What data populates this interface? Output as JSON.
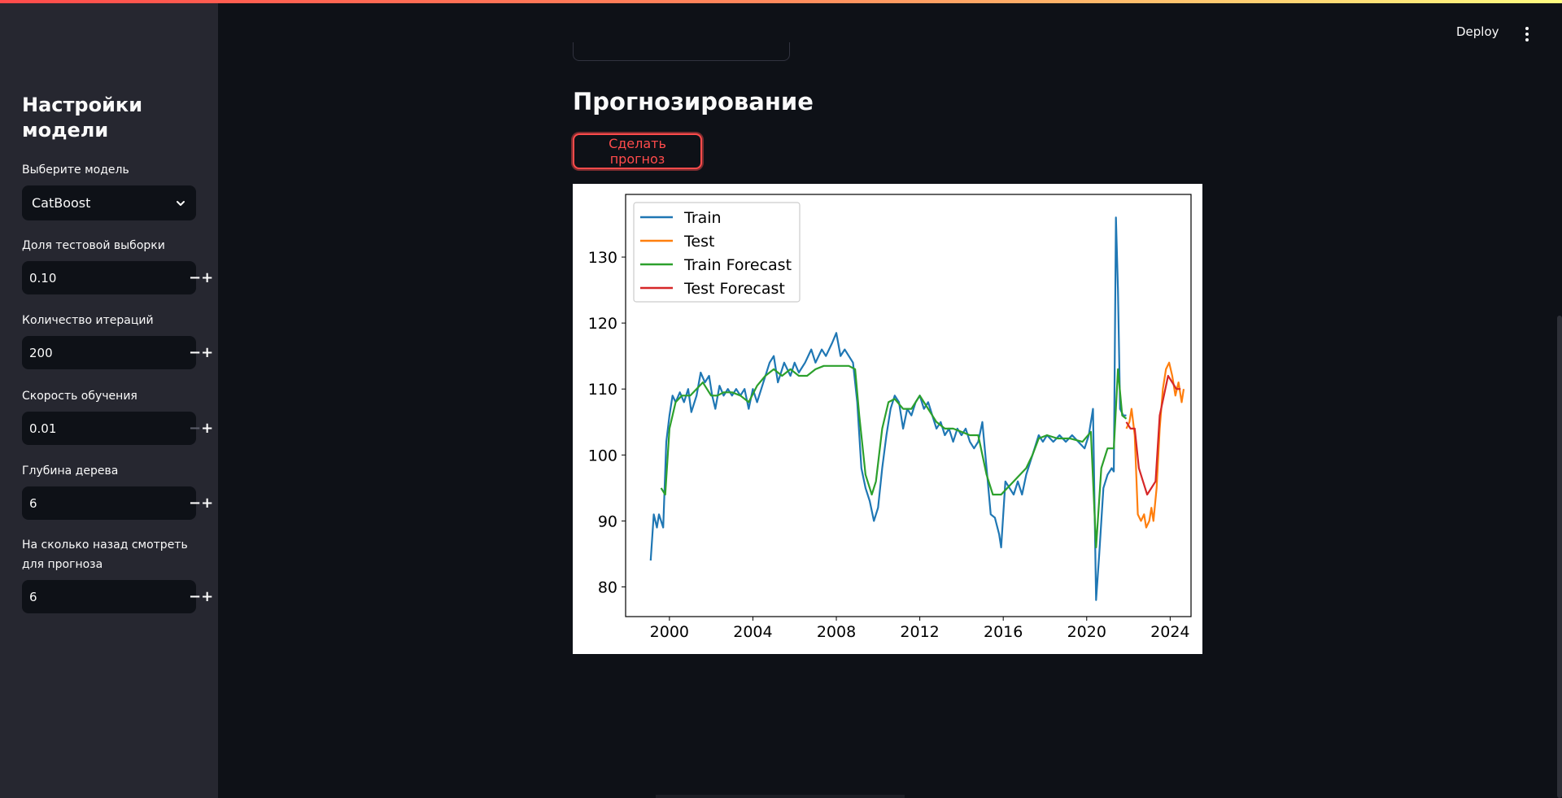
{
  "header": {
    "deploy_label": "Deploy",
    "menu_icon": "vertical-dots-icon"
  },
  "sidebar": {
    "title": "Настройки модели",
    "model_select": {
      "label": "Выберите модель",
      "value": "CatBoost",
      "icon": "chevron-down-icon"
    },
    "fields": [
      {
        "label": "Доля тестовой выборки",
        "value": "0.10",
        "minus_disabled": false
      },
      {
        "label": "Количество итераций",
        "value": "200",
        "minus_disabled": false
      },
      {
        "label": "Скорость обучения",
        "value": "0.01",
        "minus_disabled": true
      },
      {
        "label": "Глубина дерева",
        "value": "6",
        "minus_disabled": false
      },
      {
        "label": "На сколько назад смотреть для прогноза",
        "value": "6",
        "minus_disabled": false
      }
    ],
    "minus_symbol": "−",
    "plus_symbol": "+"
  },
  "main": {
    "section_title": "Прогнозирование",
    "forecast_button_label": "Сделать прогноз"
  },
  "colors": {
    "accent": "#ff4b4b",
    "train": "#1f77b4",
    "test": "#ff7f0e",
    "train_forecast": "#2ca02c",
    "test_forecast": "#d62728"
  },
  "chart_data": {
    "type": "line",
    "title": "",
    "xlabel": "",
    "ylabel": "",
    "xlim": [
      1997.9,
      2025.0
    ],
    "ylim": [
      75.5,
      139.5
    ],
    "xticks": [
      2000,
      2004,
      2008,
      2012,
      2016,
      2020,
      2024
    ],
    "yticks": [
      80,
      90,
      100,
      110,
      120,
      130
    ],
    "legend_position": "top-left",
    "grid": false,
    "series": [
      {
        "name": "Train",
        "color": "#1f77b4",
        "points": [
          [
            1999.1,
            84
          ],
          [
            1999.25,
            91
          ],
          [
            1999.4,
            89
          ],
          [
            1999.5,
            91
          ],
          [
            1999.7,
            89
          ],
          [
            1999.85,
            102
          ],
          [
            2000.0,
            106
          ],
          [
            2000.15,
            109
          ],
          [
            2000.3,
            108
          ],
          [
            2000.5,
            109.5
          ],
          [
            2000.7,
            108
          ],
          [
            2000.9,
            110
          ],
          [
            2001.05,
            106.5
          ],
          [
            2001.3,
            109
          ],
          [
            2001.5,
            112.5
          ],
          [
            2001.7,
            111
          ],
          [
            2001.9,
            112
          ],
          [
            2002.05,
            109
          ],
          [
            2002.2,
            107
          ],
          [
            2002.4,
            110.5
          ],
          [
            2002.6,
            109
          ],
          [
            2002.8,
            110
          ],
          [
            2003.0,
            109
          ],
          [
            2003.2,
            110
          ],
          [
            2003.4,
            109
          ],
          [
            2003.6,
            110
          ],
          [
            2003.8,
            107
          ],
          [
            2004.0,
            110
          ],
          [
            2004.2,
            108
          ],
          [
            2004.5,
            111
          ],
          [
            2004.8,
            114
          ],
          [
            2005.0,
            115
          ],
          [
            2005.2,
            111
          ],
          [
            2005.5,
            114
          ],
          [
            2005.8,
            112
          ],
          [
            2006.0,
            114
          ],
          [
            2006.2,
            112.5
          ],
          [
            2006.5,
            114
          ],
          [
            2006.8,
            116
          ],
          [
            2007.0,
            114
          ],
          [
            2007.3,
            116
          ],
          [
            2007.5,
            115
          ],
          [
            2007.8,
            117
          ],
          [
            2008.0,
            118.5
          ],
          [
            2008.2,
            115
          ],
          [
            2008.4,
            116
          ],
          [
            2008.6,
            115
          ],
          [
            2008.8,
            114
          ],
          [
            2009.0,
            108
          ],
          [
            2009.2,
            98
          ],
          [
            2009.4,
            95
          ],
          [
            2009.6,
            93
          ],
          [
            2009.8,
            90
          ],
          [
            2010.0,
            92
          ],
          [
            2010.2,
            98
          ],
          [
            2010.4,
            103
          ],
          [
            2010.6,
            107
          ],
          [
            2010.8,
            109
          ],
          [
            2011.0,
            108
          ],
          [
            2011.2,
            104
          ],
          [
            2011.4,
            107
          ],
          [
            2011.6,
            106
          ],
          [
            2011.8,
            108
          ],
          [
            2012.0,
            109
          ],
          [
            2012.2,
            107
          ],
          [
            2012.4,
            108
          ],
          [
            2012.6,
            106
          ],
          [
            2012.8,
            104
          ],
          [
            2013.0,
            105
          ],
          [
            2013.2,
            103
          ],
          [
            2013.4,
            104
          ],
          [
            2013.6,
            102
          ],
          [
            2013.8,
            104
          ],
          [
            2014.0,
            103
          ],
          [
            2014.2,
            104
          ],
          [
            2014.4,
            102
          ],
          [
            2014.6,
            101
          ],
          [
            2014.8,
            102
          ],
          [
            2015.0,
            105
          ],
          [
            2015.2,
            98
          ],
          [
            2015.4,
            91
          ],
          [
            2015.6,
            90.5
          ],
          [
            2015.8,
            88
          ],
          [
            2015.9,
            86
          ],
          [
            2016.1,
            96
          ],
          [
            2016.3,
            95
          ],
          [
            2016.5,
            94
          ],
          [
            2016.7,
            96
          ],
          [
            2016.9,
            94
          ],
          [
            2017.1,
            97
          ],
          [
            2017.3,
            99
          ],
          [
            2017.5,
            101
          ],
          [
            2017.7,
            103
          ],
          [
            2017.9,
            102
          ],
          [
            2018.1,
            103
          ],
          [
            2018.4,
            102
          ],
          [
            2018.7,
            103
          ],
          [
            2019.0,
            102
          ],
          [
            2019.3,
            103
          ],
          [
            2019.6,
            102
          ],
          [
            2019.9,
            101
          ],
          [
            2020.1,
            103
          ],
          [
            2020.3,
            107
          ],
          [
            2020.45,
            78
          ],
          [
            2020.6,
            85
          ],
          [
            2020.8,
            95
          ],
          [
            2021.0,
            97
          ],
          [
            2021.2,
            98
          ],
          [
            2021.3,
            97.5
          ],
          [
            2021.4,
            136
          ],
          [
            2021.5,
            125
          ],
          [
            2021.6,
            107
          ],
          [
            2021.75,
            106
          ],
          [
            2021.9,
            106
          ]
        ]
      },
      {
        "name": "Test",
        "color": "#ff7f0e",
        "points": [
          [
            2021.9,
            104
          ],
          [
            2022.05,
            105
          ],
          [
            2022.15,
            107
          ],
          [
            2022.3,
            103
          ],
          [
            2022.45,
            91
          ],
          [
            2022.6,
            90
          ],
          [
            2022.75,
            91
          ],
          [
            2022.85,
            89
          ],
          [
            2023.0,
            90
          ],
          [
            2023.1,
            92
          ],
          [
            2023.2,
            90
          ],
          [
            2023.35,
            95
          ],
          [
            2023.5,
            104
          ],
          [
            2023.65,
            110
          ],
          [
            2023.8,
            113
          ],
          [
            2023.95,
            114
          ],
          [
            2024.1,
            112
          ],
          [
            2024.25,
            109
          ],
          [
            2024.4,
            111
          ],
          [
            2024.55,
            108
          ],
          [
            2024.65,
            110
          ]
        ]
      },
      {
        "name": "Train Forecast",
        "color": "#2ca02c",
        "points": [
          [
            1999.6,
            95
          ],
          [
            1999.8,
            94
          ],
          [
            2000.0,
            104
          ],
          [
            2000.3,
            108
          ],
          [
            2000.6,
            109
          ],
          [
            2001.0,
            109
          ],
          [
            2001.3,
            110
          ],
          [
            2001.6,
            111
          ],
          [
            2002.0,
            109
          ],
          [
            2002.3,
            109
          ],
          [
            2002.6,
            109.5
          ],
          [
            2003.0,
            109.5
          ],
          [
            2003.4,
            109
          ],
          [
            2003.8,
            108
          ],
          [
            2004.2,
            110.5
          ],
          [
            2004.6,
            112
          ],
          [
            2005.0,
            113
          ],
          [
            2005.4,
            112
          ],
          [
            2005.8,
            113
          ],
          [
            2006.2,
            112
          ],
          [
            2006.6,
            112
          ],
          [
            2007.0,
            113
          ],
          [
            2007.4,
            113.5
          ],
          [
            2007.8,
            113.5
          ],
          [
            2008.2,
            113.5
          ],
          [
            2008.6,
            113.5
          ],
          [
            2008.9,
            113
          ],
          [
            2009.1,
            106
          ],
          [
            2009.4,
            97
          ],
          [
            2009.7,
            94
          ],
          [
            2009.9,
            96
          ],
          [
            2010.2,
            104
          ],
          [
            2010.5,
            108
          ],
          [
            2010.8,
            108.5
          ],
          [
            2011.2,
            107
          ],
          [
            2011.6,
            107
          ],
          [
            2012.0,
            109
          ],
          [
            2012.4,
            107
          ],
          [
            2012.8,
            105
          ],
          [
            2013.2,
            104
          ],
          [
            2013.6,
            104
          ],
          [
            2014.0,
            103.5
          ],
          [
            2014.4,
            103
          ],
          [
            2014.8,
            103
          ],
          [
            2015.2,
            97
          ],
          [
            2015.5,
            94
          ],
          [
            2015.9,
            94
          ],
          [
            2016.2,
            95
          ],
          [
            2016.5,
            96
          ],
          [
            2016.8,
            97
          ],
          [
            2017.1,
            98
          ],
          [
            2017.4,
            100
          ],
          [
            2017.7,
            102.5
          ],
          [
            2018.1,
            103
          ],
          [
            2018.6,
            102.5
          ],
          [
            2019.2,
            102.5
          ],
          [
            2019.8,
            102
          ],
          [
            2020.2,
            103.5
          ],
          [
            2020.45,
            86
          ],
          [
            2020.7,
            98
          ],
          [
            2021.0,
            101
          ],
          [
            2021.3,
            101
          ],
          [
            2021.5,
            113
          ],
          [
            2021.7,
            106
          ],
          [
            2021.9,
            105.5
          ]
        ]
      },
      {
        "name": "Test Forecast",
        "color": "#d62728",
        "points": [
          [
            2021.9,
            105
          ],
          [
            2022.1,
            104
          ],
          [
            2022.3,
            104
          ],
          [
            2022.5,
            98
          ],
          [
            2022.7,
            96
          ],
          [
            2022.9,
            94
          ],
          [
            2023.1,
            95
          ],
          [
            2023.3,
            96
          ],
          [
            2023.5,
            106
          ],
          [
            2023.7,
            109
          ],
          [
            2023.9,
            112
          ],
          [
            2024.1,
            111
          ],
          [
            2024.3,
            110
          ],
          [
            2024.5,
            110
          ]
        ]
      }
    ]
  }
}
